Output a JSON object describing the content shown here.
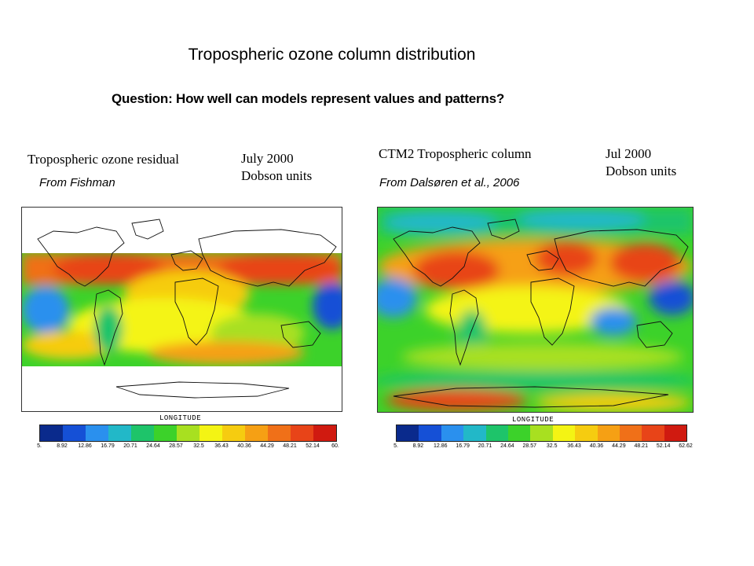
{
  "title": "Tropospheric ozone column distribution",
  "question": "Question: How well can models represent values and patterns?",
  "left_panel": {
    "map_title": "Tropospheric ozone residual",
    "date_line1": "July 2000",
    "date_line2": "Dobson units",
    "source": "From Fishman",
    "axis_label": "LONGITUDE",
    "ticks": [
      "5.",
      "8.92",
      "12.86",
      "16.79",
      "20.71",
      "24.64",
      "28.57",
      "32.5",
      "36.43",
      "40.36",
      "44.29",
      "48.21",
      "52.14",
      "60."
    ]
  },
  "right_panel": {
    "map_title": "CTM2 Tropospheric column",
    "date_line1": "Jul 2000",
    "date_line2": "Dobson units",
    "source": "From Dalsøren et al., 2006",
    "axis_label": "LONGITUDE",
    "ticks": [
      "5.",
      "8.92",
      "12.86",
      "16.79",
      "20.71",
      "24.64",
      "28.57",
      "32.5",
      "36.43",
      "40.36",
      "44.29",
      "48.21",
      "52.14",
      "62.62"
    ]
  },
  "colorbar_colors": [
    "#0a2a8c",
    "#1550d6",
    "#2a90ee",
    "#22b8c8",
    "#1ec46a",
    "#3cd22a",
    "#a8e020",
    "#f4f414",
    "#f6cc10",
    "#f6a014",
    "#f07018",
    "#e84418",
    "#d01a10"
  ]
}
